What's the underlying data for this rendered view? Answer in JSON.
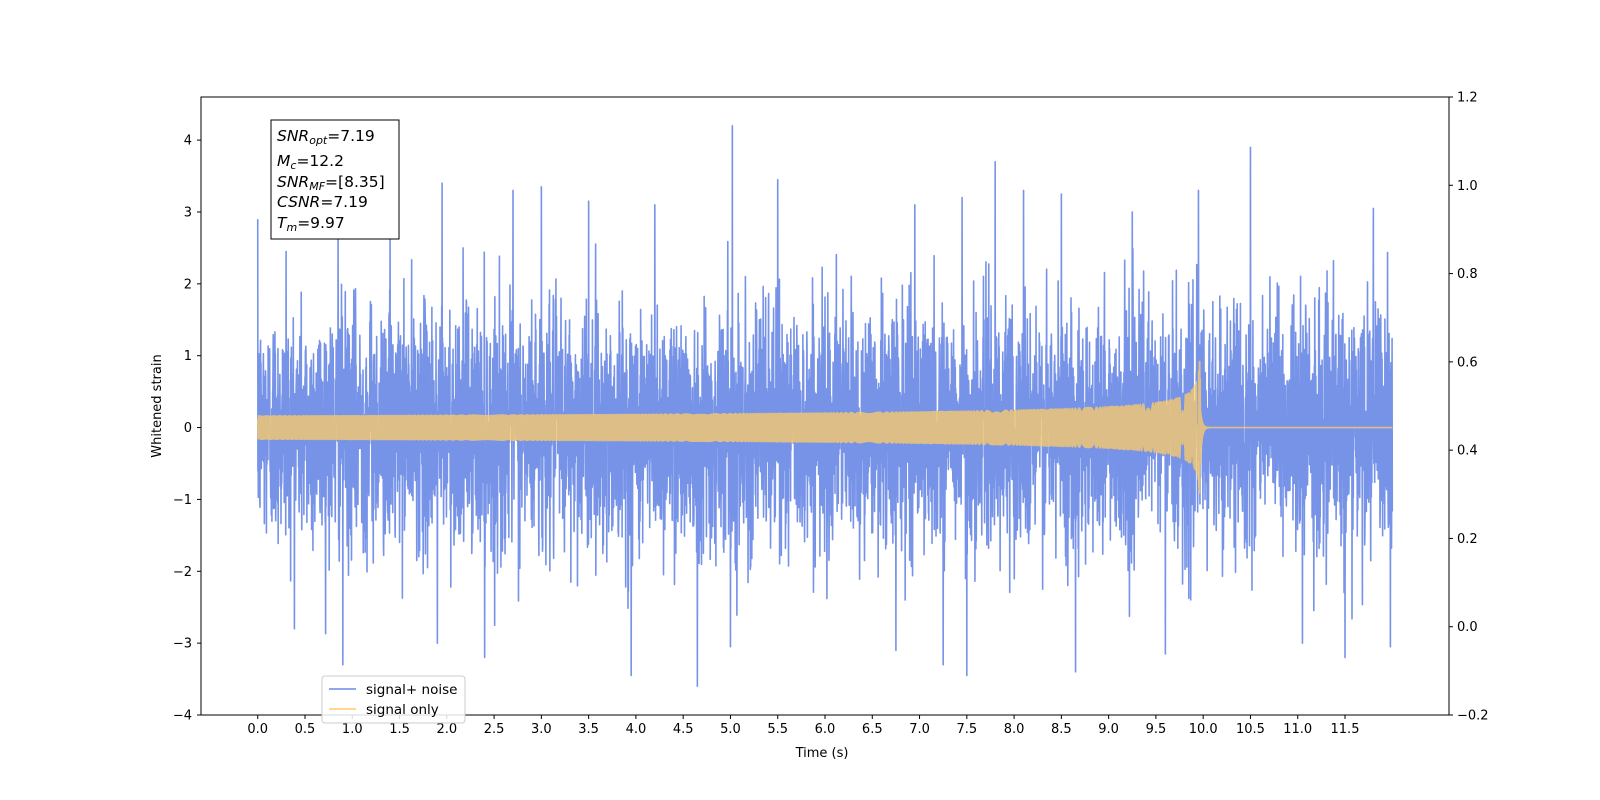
{
  "chart_data": {
    "type": "line",
    "title": "",
    "xlabel": "Time (s)",
    "ylabel": "Whitened strain",
    "xlim": [
      -0.6,
      12.6
    ],
    "ylim": [
      -4,
      4.6
    ],
    "y2lim": [
      -0.2,
      1.2
    ],
    "x_ticks": [
      "0.0",
      "0.5",
      "1.0",
      "1.5",
      "2.0",
      "2.5",
      "3.0",
      "3.5",
      "4.0",
      "4.5",
      "5.0",
      "5.5",
      "6.0",
      "6.5",
      "7.0",
      "7.5",
      "8.0",
      "8.5",
      "9.0",
      "9.5",
      "10.0",
      "10.5",
      "11.0",
      "11.5"
    ],
    "y_ticks": [
      "4",
      "3",
      "2",
      "1",
      "0",
      "−1",
      "−2",
      "−3",
      "−4"
    ],
    "y2_ticks": [
      "1.2",
      "1.0",
      "0.8",
      "0.6",
      "0.4",
      "0.2",
      "0.0",
      "−0.2"
    ],
    "grid": false,
    "legend_position": "lower-left",
    "series": [
      {
        "name": "signal+ noise",
        "color": "#6a8ae6",
        "x_range": [
          0.0,
          12.0
        ],
        "noise_std": 1.0,
        "peaks": [
          {
            "x": 0.0,
            "y": 2.9
          },
          {
            "x": 0.3,
            "y": 2.45
          },
          {
            "x": 0.85,
            "y": 2.75
          },
          {
            "x": 1.4,
            "y": 2.95
          },
          {
            "x": 1.95,
            "y": 3.4
          },
          {
            "x": 2.7,
            "y": 3.3
          },
          {
            "x": 3.0,
            "y": 3.35
          },
          {
            "x": 3.5,
            "y": 3.15
          },
          {
            "x": 4.2,
            "y": 3.1
          },
          {
            "x": 5.02,
            "y": 4.2
          },
          {
            "x": 5.5,
            "y": 3.45
          },
          {
            "x": 6.95,
            "y": 3.1
          },
          {
            "x": 7.45,
            "y": 3.2
          },
          {
            "x": 7.8,
            "y": 3.7
          },
          {
            "x": 8.1,
            "y": 3.3
          },
          {
            "x": 8.5,
            "y": 3.25
          },
          {
            "x": 9.25,
            "y": 3.0
          },
          {
            "x": 9.95,
            "y": 3.3
          },
          {
            "x": 10.5,
            "y": 3.9
          },
          {
            "x": 11.8,
            "y": 3.05
          },
          {
            "x": 0.9,
            "y": -3.3
          },
          {
            "x": 1.9,
            "y": -3.0
          },
          {
            "x": 2.4,
            "y": -3.2
          },
          {
            "x": 3.95,
            "y": -3.45
          },
          {
            "x": 4.65,
            "y": -3.6
          },
          {
            "x": 5.0,
            "y": -3.05
          },
          {
            "x": 6.75,
            "y": -3.1
          },
          {
            "x": 7.25,
            "y": -3.3
          },
          {
            "x": 7.5,
            "y": -3.45
          },
          {
            "x": 8.65,
            "y": -3.4
          },
          {
            "x": 9.6,
            "y": -3.15
          },
          {
            "x": 11.5,
            "y": -3.2
          },
          {
            "x": 11.05,
            "y": -3.0
          },
          {
            "x": 11.98,
            "y": -3.05
          }
        ]
      },
      {
        "name": "signal only",
        "color": "#ffcc66",
        "x_range": [
          0.0,
          12.0
        ],
        "merger_time": 9.97,
        "peak_amplitude": 1.15
      }
    ]
  },
  "annotation": {
    "lines": [
      {
        "main": "SNR",
        "sub": "opt",
        "value": "=7.19"
      },
      {
        "main": "M",
        "sub": "c",
        "value": "=12.2"
      },
      {
        "main": "SNR",
        "sub": "MF",
        "value": "=[8.35]"
      },
      {
        "main": "CSNR",
        "sub": "",
        "value": "=7.19"
      },
      {
        "main": "T",
        "sub": "m",
        "value": "=9.97"
      }
    ]
  }
}
